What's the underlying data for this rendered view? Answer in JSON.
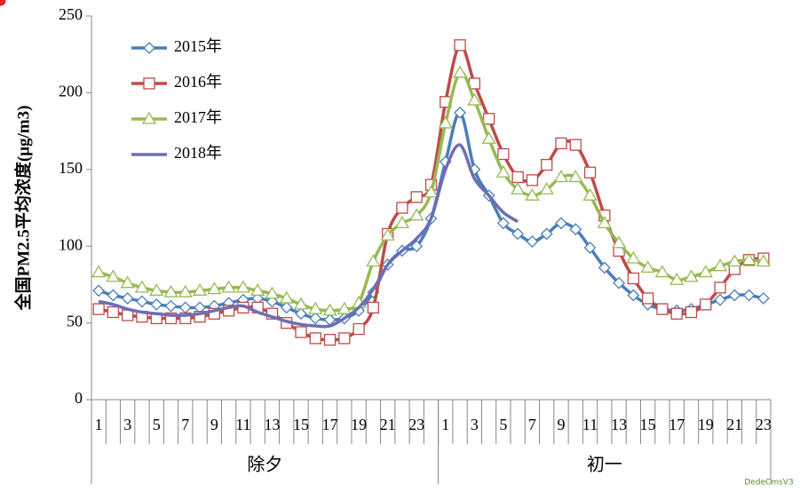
{
  "chart_data": {
    "type": "line",
    "y_label": "全国PM2.5平均浓度(μg/m3)",
    "categories": [
      "1",
      null,
      "3",
      null,
      "5",
      null,
      "7",
      null,
      "9",
      null,
      "11",
      null,
      "13",
      null,
      "15",
      null,
      "17",
      null,
      "19",
      null,
      "21",
      null,
      "23",
      null,
      "1",
      null,
      "3",
      null,
      "5",
      null,
      "7",
      null,
      "9",
      null,
      "11",
      null,
      "13",
      null,
      "15",
      null,
      "17",
      null,
      "19",
      null,
      "21",
      null,
      "23"
    ],
    "groups": [
      "除夕",
      "初一"
    ],
    "group_sizes": [
      24,
      23
    ],
    "ylim": [
      0,
      250
    ],
    "yticks": [
      0,
      50,
      100,
      150,
      200,
      250
    ],
    "legend": "top-left",
    "series": [
      {
        "name": "2015年",
        "color": "#4a7ebb",
        "marker": "diamond",
        "marker_fill": "#ffffff",
        "values": [
          71,
          68,
          66,
          64,
          62,
          61,
          60,
          60,
          61,
          63,
          65,
          66,
          64,
          60,
          56,
          53,
          52,
          53,
          58,
          70,
          88,
          97,
          100,
          118,
          155,
          187,
          150,
          133,
          115,
          108,
          103,
          108,
          115,
          111,
          99,
          86,
          76,
          68,
          62,
          59,
          58,
          59,
          62,
          65,
          68,
          68,
          66
        ]
      },
      {
        "name": "2016年",
        "color": "#be4b48",
        "marker": "square",
        "marker_fill": "#ffffff",
        "values": [
          59,
          57,
          55,
          54,
          53,
          53,
          53,
          54,
          56,
          58,
          60,
          60,
          56,
          50,
          44,
          40,
          39,
          40,
          46,
          60,
          108,
          125,
          132,
          140,
          194,
          231,
          206,
          183,
          160,
          145,
          143,
          153,
          167,
          166,
          148,
          120,
          97,
          79,
          66,
          59,
          56,
          57,
          62,
          73,
          85,
          91,
          92
        ]
      },
      {
        "name": "2017年",
        "color": "#98b954",
        "marker": "triangle",
        "marker_fill": "#ffffff",
        "values": [
          83,
          80,
          76,
          73,
          71,
          70,
          70,
          71,
          72,
          73,
          73,
          71,
          69,
          66,
          62,
          59,
          58,
          59,
          63,
          90,
          107,
          115,
          120,
          135,
          180,
          213,
          195,
          170,
          148,
          137,
          133,
          137,
          145,
          145,
          133,
          115,
          102,
          92,
          86,
          83,
          78,
          80,
          83,
          87,
          90,
          91,
          90
        ]
      },
      {
        "name": "2018年",
        "color": "#6d6fb3",
        "marker": "circle",
        "marker_fill": "#e8202a",
        "values": [
          64,
          62,
          59,
          57,
          56,
          55,
          55,
          56,
          58,
          60,
          61,
          57,
          54,
          51,
          49,
          48,
          48,
          53,
          60,
          72,
          88,
          97,
          105,
          118,
          150,
          166,
          144,
          133,
          122,
          116,
          null,
          null,
          null,
          null,
          null,
          null,
          null,
          null,
          null,
          null,
          null,
          null,
          null,
          null,
          null,
          null,
          null
        ]
      }
    ],
    "watermark": "DedeCmsV3"
  }
}
